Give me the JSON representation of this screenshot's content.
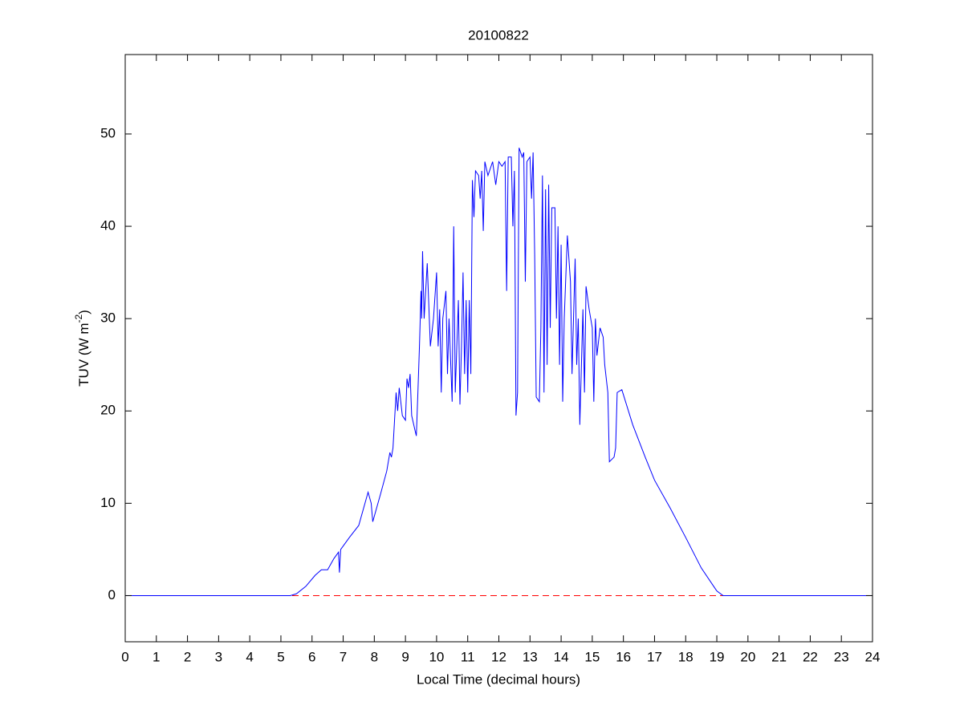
{
  "chart_data": {
    "type": "line",
    "title": "20100822",
    "xlabel": "Local Time (decimal hours)",
    "ylabel": {
      "text": "TUV (W m",
      "superscript": "-2",
      "suffix": ")"
    },
    "xlim": [
      0,
      24
    ],
    "xticks": [
      0,
      1,
      2,
      3,
      4,
      5,
      6,
      7,
      8,
      9,
      10,
      11,
      12,
      13,
      14,
      15,
      16,
      17,
      18,
      19,
      20,
      21,
      22,
      23,
      24
    ],
    "ylim": [
      -5,
      58.6
    ],
    "yticks": [
      0,
      10,
      20,
      30,
      40,
      50
    ],
    "grid": false,
    "hline": {
      "value": 0,
      "color": "#ff0000",
      "style": "dashed"
    },
    "series": [
      {
        "color": "#0000ff",
        "x": [
          0,
          5.3,
          5.5,
          5.8,
          6.1,
          6.3,
          6.5,
          6.7,
          6.85,
          6.88,
          6.92,
          7.2,
          7.5,
          7.7,
          7.8,
          7.9,
          7.95,
          8.2,
          8.4,
          8.5,
          8.55,
          8.6,
          8.65,
          8.7,
          8.75,
          8.8,
          8.9,
          9.0,
          9.05,
          9.1,
          9.15,
          9.2,
          9.3,
          9.35,
          9.4,
          9.45,
          9.5,
          9.52,
          9.55,
          9.6,
          9.7,
          9.8,
          9.9,
          10.0,
          10.05,
          10.1,
          10.15,
          10.2,
          10.3,
          10.35,
          10.4,
          10.5,
          10.55,
          10.6,
          10.7,
          10.75,
          10.8,
          10.85,
          10.9,
          10.95,
          11.0,
          11.05,
          11.1,
          11.15,
          11.2,
          11.25,
          11.35,
          11.4,
          11.45,
          11.5,
          11.55,
          11.65,
          11.8,
          11.9,
          12.0,
          12.1,
          12.2,
          12.25,
          12.3,
          12.4,
          12.45,
          12.5,
          12.55,
          12.6,
          12.65,
          12.75,
          12.8,
          12.85,
          12.9,
          13.0,
          13.05,
          13.1,
          13.15,
          13.2,
          13.3,
          13.35,
          13.4,
          13.45,
          13.5,
          13.55,
          13.6,
          13.65,
          13.7,
          13.8,
          13.85,
          13.9,
          13.95,
          14.0,
          14.05,
          14.1,
          14.2,
          14.3,
          14.35,
          14.45,
          14.5,
          14.55,
          14.6,
          14.7,
          14.75,
          14.8,
          14.9,
          15.0,
          15.05,
          15.1,
          15.15,
          15.25,
          15.35,
          15.4,
          15.5,
          15.55,
          15.7,
          15.75,
          15.8,
          15.95,
          16.3,
          16.7,
          17.0,
          17.5,
          18.0,
          18.5,
          19.0,
          19.2,
          24
        ],
        "values": [
          0,
          0,
          0.2,
          1,
          2.2,
          2.8,
          2.8,
          4,
          4.7,
          2.5,
          5,
          6.3,
          7.6,
          10,
          11.2,
          10,
          8,
          11,
          13.5,
          15.5,
          15,
          16,
          19,
          22,
          20,
          22.5,
          19.5,
          19,
          23.5,
          22.5,
          24,
          19.5,
          18,
          17.3,
          22,
          27,
          33,
          30,
          37.3,
          30,
          36,
          27,
          30,
          35,
          27,
          31,
          22,
          30,
          33,
          24,
          30,
          21,
          40,
          22,
          32,
          20.7,
          27,
          35,
          24,
          32,
          22,
          32,
          24,
          45,
          41,
          46,
          45.5,
          43,
          46,
          39.5,
          47,
          45.5,
          47,
          44.5,
          47,
          46.5,
          47,
          33,
          47.5,
          47.5,
          40,
          46,
          19.5,
          22,
          48.5,
          47.5,
          48,
          34,
          47,
          47.5,
          43,
          48,
          37,
          21.5,
          21,
          29,
          45.5,
          22,
          44,
          25,
          44.5,
          29,
          42,
          42,
          30,
          40,
          25,
          38,
          21,
          30,
          39,
          34,
          24,
          36.5,
          25,
          30,
          18.5,
          31,
          22,
          33.5,
          31,
          29,
          21,
          30,
          26,
          29,
          28,
          25,
          22,
          14.5,
          15,
          16,
          22,
          22.3,
          18.5,
          15,
          12.5,
          9.5,
          6.3,
          3,
          0.5,
          0,
          0
        ]
      }
    ]
  }
}
